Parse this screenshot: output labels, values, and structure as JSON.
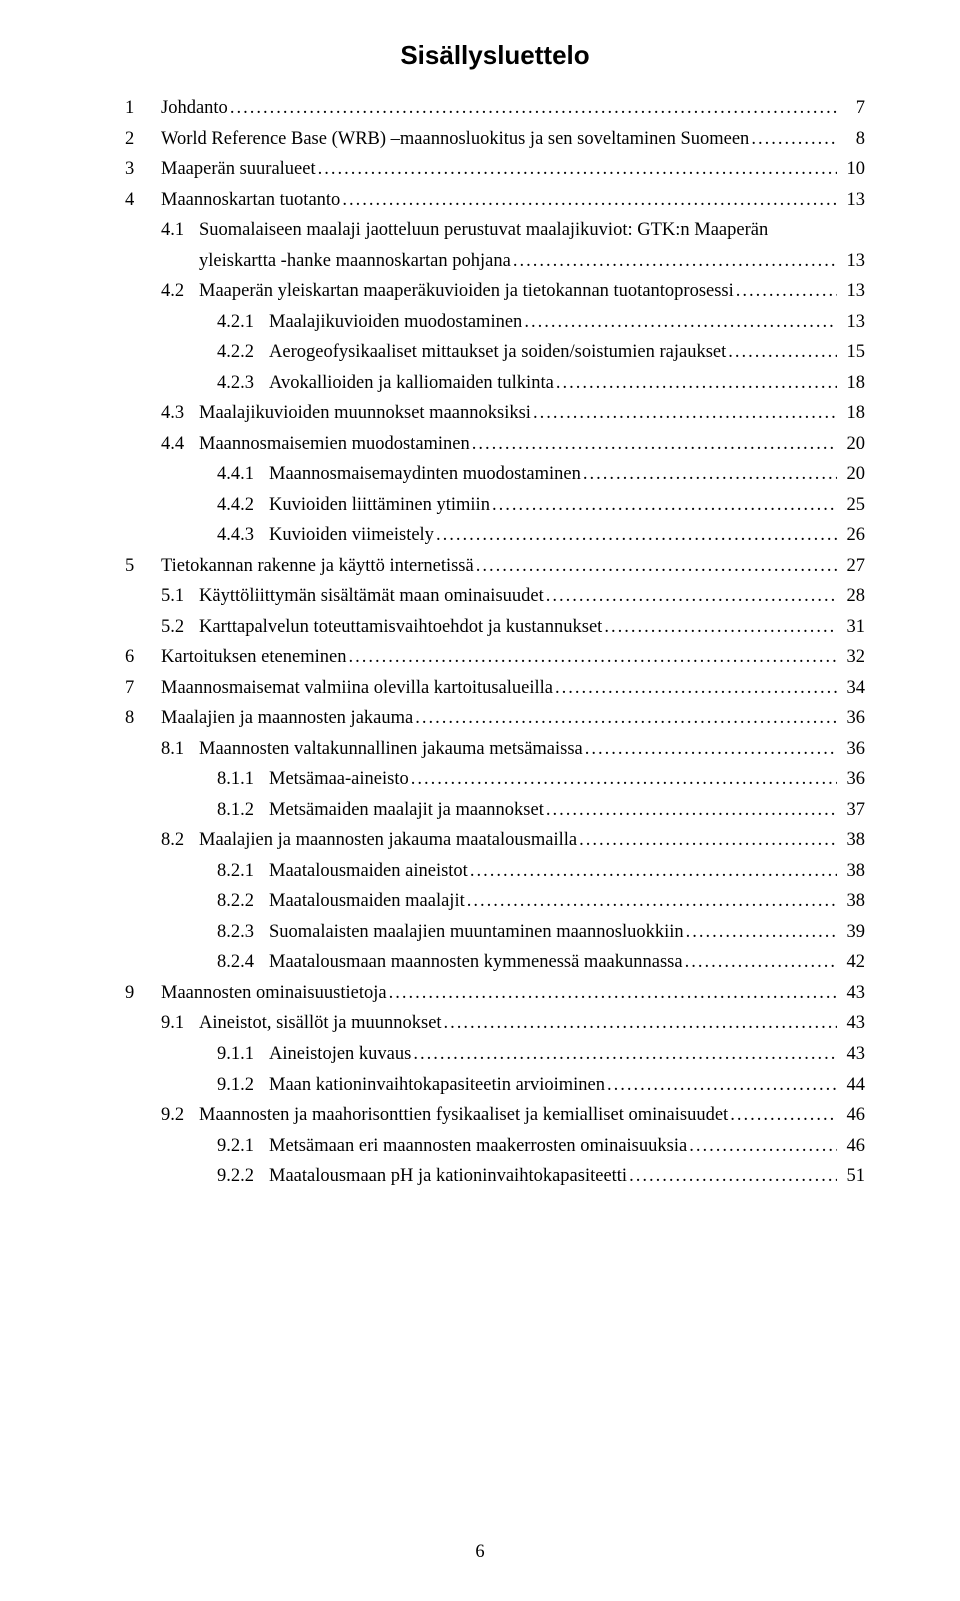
{
  "title": "Sisällysluettelo",
  "page_number": "6",
  "toc": [
    {
      "level": 1,
      "num": "1",
      "label": "Johdanto",
      "page": "7"
    },
    {
      "level": 1,
      "num": "2",
      "label": "World Reference Base (WRB) –maannosluokitus ja sen soveltaminen Suomeen",
      "page": "8"
    },
    {
      "level": 1,
      "num": "3",
      "label": "Maaperän suuralueet",
      "page": "10"
    },
    {
      "level": 1,
      "num": "4",
      "label": "Maannoskartan tuotanto",
      "page": "13"
    },
    {
      "level": 2,
      "num": "4.1",
      "label": "Suomalaiseen maalaji jaotteluun perustuvat maalajikuviot: GTK:n Maaperän yleiskartta -hanke maannoskartan pohjana",
      "page": "13"
    },
    {
      "level": 2,
      "num": "4.2",
      "label": "Maaperän yleiskartan maaperäkuvioiden ja tietokannan tuotantoprosessi",
      "page": "13"
    },
    {
      "level": 3,
      "num": "4.2.1",
      "label": "Maalajikuvioiden muodostaminen",
      "page": "13"
    },
    {
      "level": 3,
      "num": "4.2.2",
      "label": "Aerogeofysikaaliset mittaukset ja soiden/soistumien rajaukset",
      "page": "15"
    },
    {
      "level": 3,
      "num": "4.2.3",
      "label": "Avokallioiden ja kalliomaiden tulkinta",
      "page": "18"
    },
    {
      "level": 2,
      "num": "4.3",
      "label": "Maalajikuvioiden muunnokset maannoksiksi",
      "page": "18"
    },
    {
      "level": 2,
      "num": "4.4",
      "label": "Maannosmaisemien muodostaminen",
      "page": "20"
    },
    {
      "level": 3,
      "num": "4.4.1",
      "label": "Maannosmaisemaydinten muodostaminen",
      "page": "20"
    },
    {
      "level": 3,
      "num": "4.4.2",
      "label": "Kuvioiden liittäminen ytimiin",
      "page": "25"
    },
    {
      "level": 3,
      "num": "4.4.3",
      "label": "Kuvioiden viimeistely",
      "page": "26"
    },
    {
      "level": 1,
      "num": "5",
      "label": "Tietokannan rakenne ja käyttö internetissä",
      "page": "27"
    },
    {
      "level": 2,
      "num": "5.1",
      "label": "Käyttöliittymän sisältämät maan ominaisuudet",
      "page": "28"
    },
    {
      "level": 2,
      "num": "5.2",
      "label": "Karttapalvelun toteuttamisvaihtoehdot ja kustannukset",
      "page": "31"
    },
    {
      "level": 1,
      "num": "6",
      "label": "Kartoituksen eteneminen",
      "page": "32"
    },
    {
      "level": 1,
      "num": "7",
      "label": "Maannosmaisemat valmiina olevilla kartoitusalueilla",
      "page": "34"
    },
    {
      "level": 1,
      "num": "8",
      "label": "Maalajien ja maannosten jakauma",
      "page": "36"
    },
    {
      "level": 2,
      "num": "8.1",
      "label": "Maannosten valtakunnallinen jakauma metsämaissa",
      "page": "36"
    },
    {
      "level": 3,
      "num": "8.1.1",
      "label": "Metsämaa-aineisto",
      "page": "36"
    },
    {
      "level": 3,
      "num": "8.1.2",
      "label": "Metsämaiden maalajit ja maannokset",
      "page": "37"
    },
    {
      "level": 2,
      "num": "8.2",
      "label": "Maalajien ja maannosten jakauma maatalousmailla",
      "page": "38"
    },
    {
      "level": 3,
      "num": "8.2.1",
      "label": "Maatalousmaiden aineistot",
      "page": "38"
    },
    {
      "level": 3,
      "num": "8.2.2",
      "label": "Maatalousmaiden maalajit",
      "page": "38"
    },
    {
      "level": 3,
      "num": "8.2.3",
      "label": "Suomalaisten maalajien muuntaminen maannosluokkiin",
      "page": "39"
    },
    {
      "level": 3,
      "num": "8.2.4",
      "label": "Maatalousmaan maannosten kymmenessä maakunnassa",
      "page": "42"
    },
    {
      "level": 1,
      "num": "9",
      "label": "Maannosten ominaisuustietoja",
      "page": "43"
    },
    {
      "level": 2,
      "num": "9.1",
      "label": "Aineistot, sisällöt ja muunnokset",
      "page": "43"
    },
    {
      "level": 3,
      "num": "9.1.1",
      "label": "Aineistojen kuvaus",
      "page": "43"
    },
    {
      "level": 3,
      "num": "9.1.2",
      "label": "Maan kationinvaihtokapasiteetin arvioiminen",
      "page": "44"
    },
    {
      "level": 2,
      "num": "9.2",
      "label": "Maannosten ja maahorisonttien fysikaaliset ja kemialliset ominaisuudet",
      "page": "46"
    },
    {
      "level": 3,
      "num": "9.2.1",
      "label": "Metsämaan eri maannosten maakerrosten ominaisuuksia",
      "page": "46"
    },
    {
      "level": 3,
      "num": "9.2.2",
      "label": "Maatalousmaan pH ja kationinvaihtokapasiteetti",
      "page": "51"
    }
  ]
}
